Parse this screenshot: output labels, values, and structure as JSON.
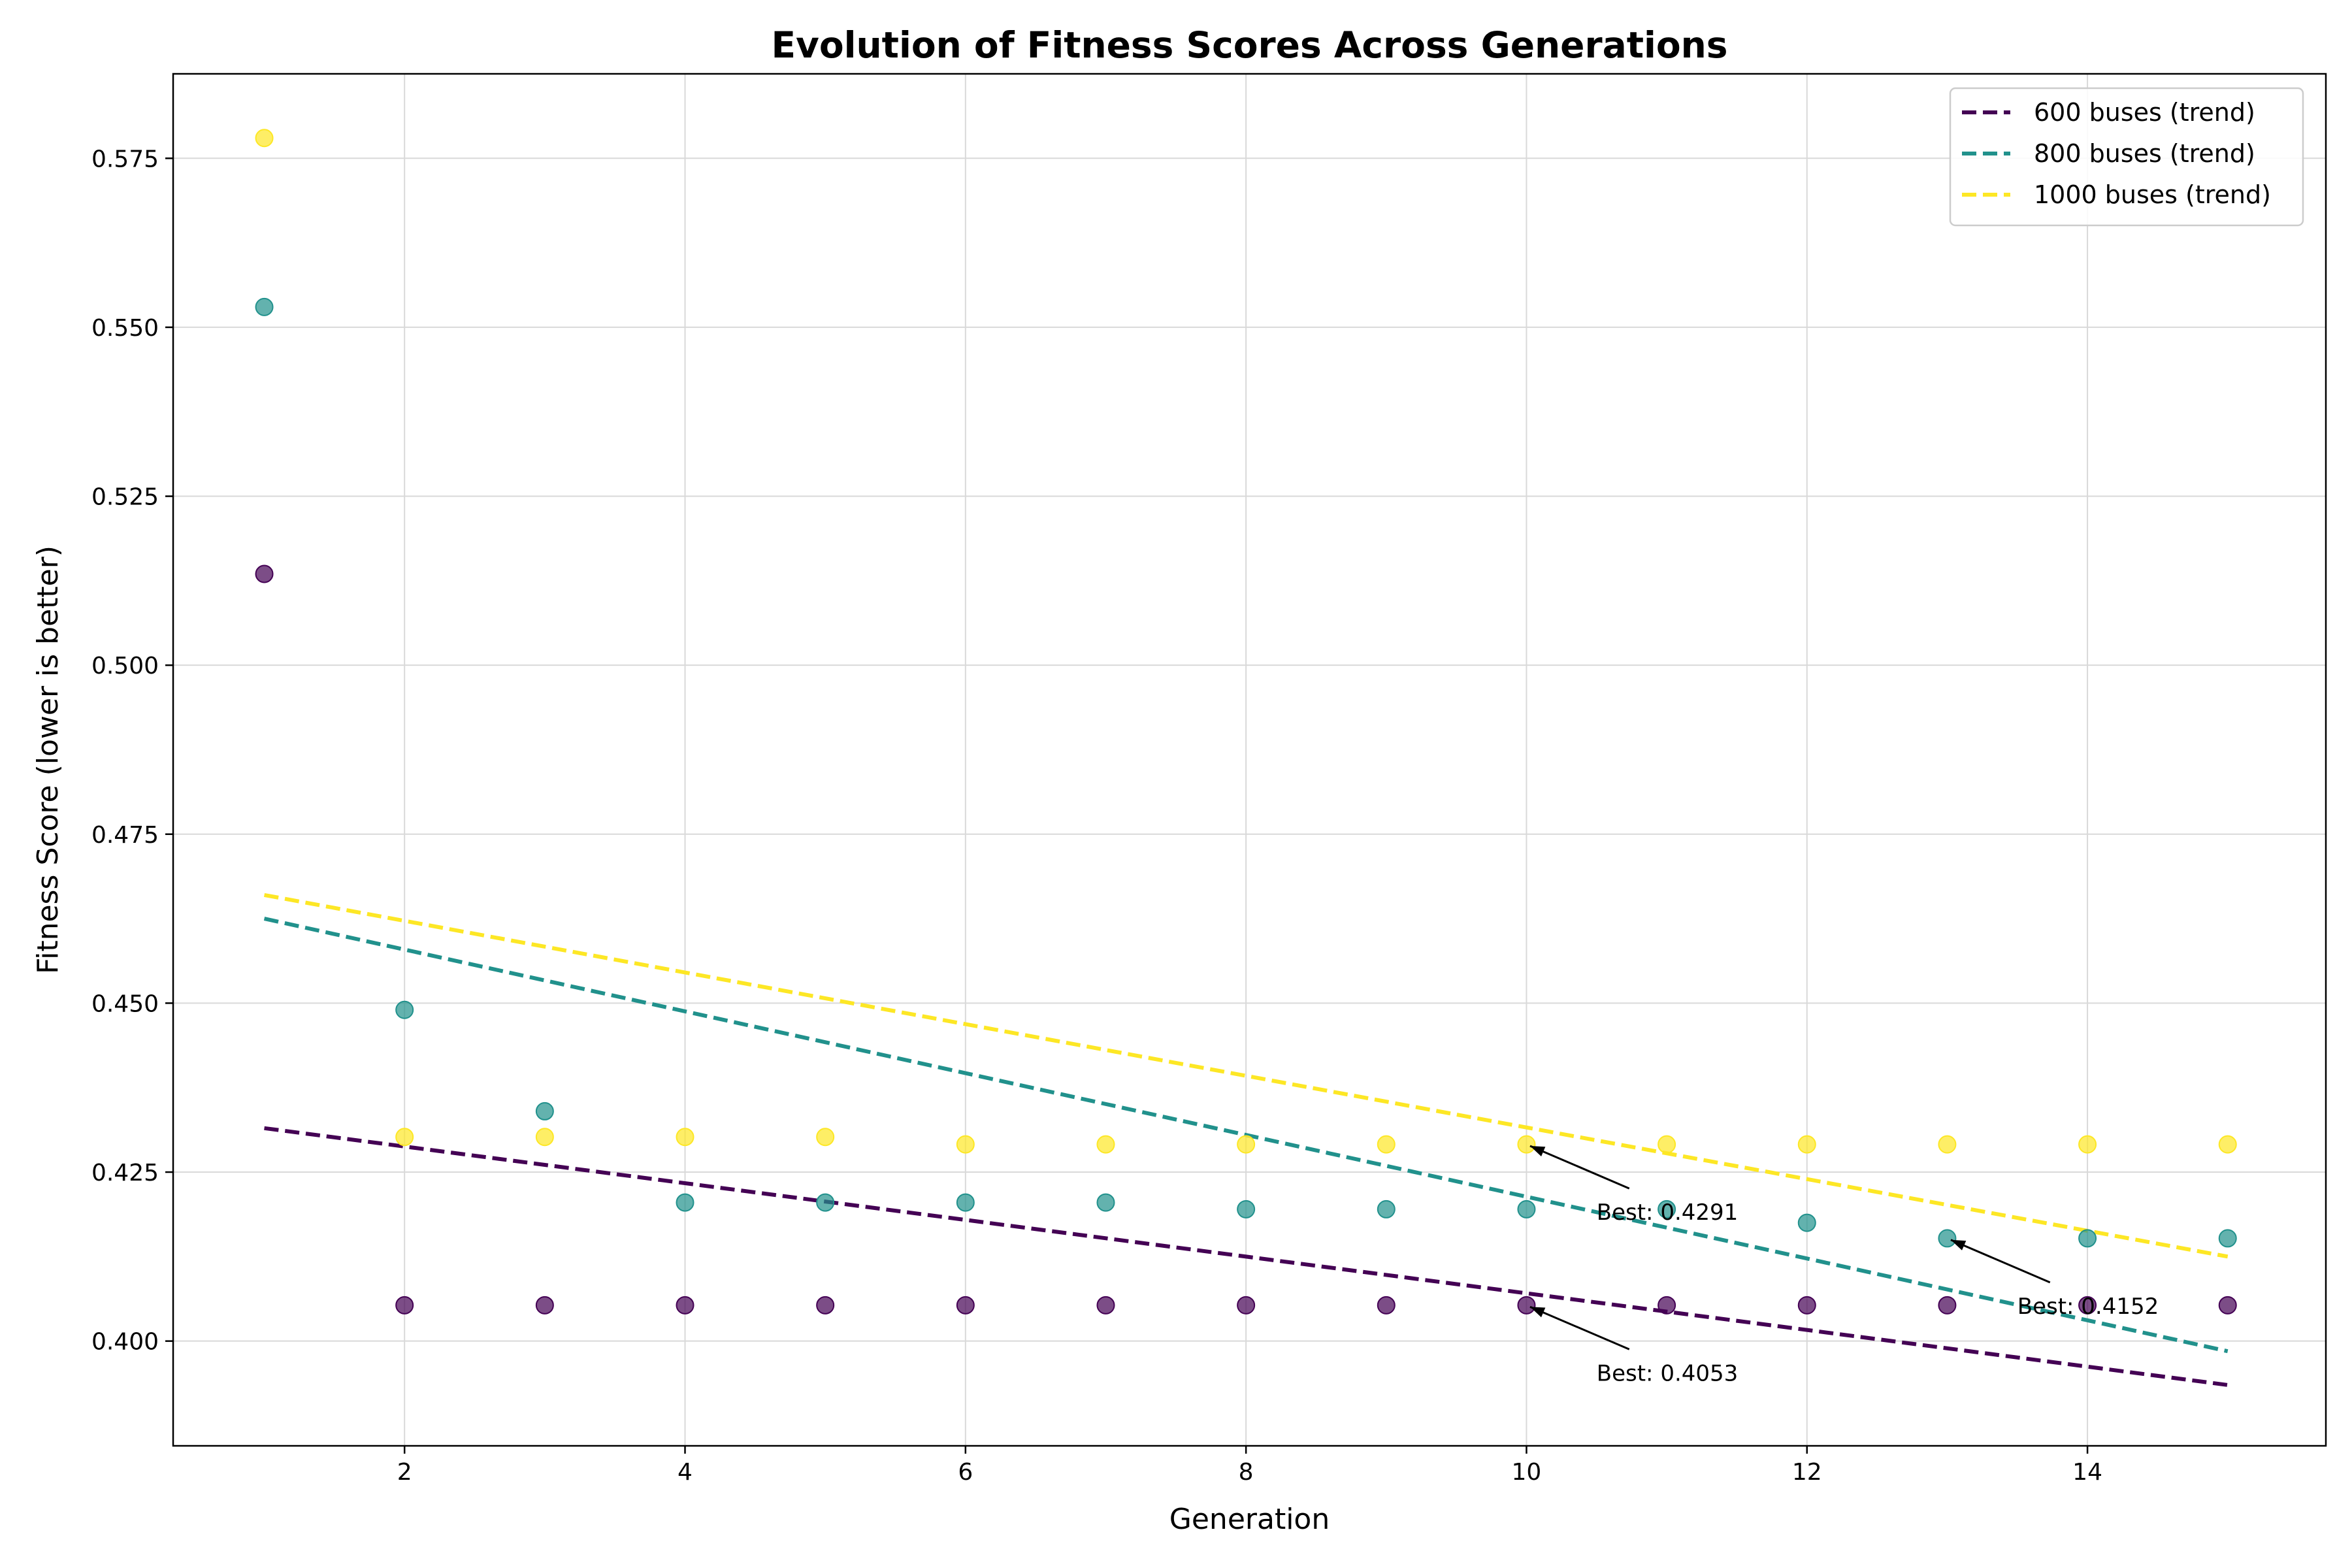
{
  "chart_data": {
    "type": "scatter",
    "title": "Evolution of Fitness Scores Across Generations",
    "xlabel": "Generation",
    "ylabel": "Fitness Score (lower is better)",
    "xlim": [
      0.35,
      15.7
    ],
    "ylim": [
      0.3845,
      0.5875
    ],
    "xticks": [
      2,
      4,
      6,
      8,
      10,
      12,
      14
    ],
    "yticks": [
      0.4,
      0.425,
      0.45,
      0.475,
      0.5,
      0.525,
      0.55,
      0.575
    ],
    "ytick_labels": [
      "0.400",
      "0.425",
      "0.450",
      "0.475",
      "0.500",
      "0.525",
      "0.550",
      "0.575"
    ],
    "grid": true,
    "legend_position": "top-right",
    "x": [
      1,
      2,
      3,
      4,
      5,
      6,
      7,
      8,
      9,
      10,
      11,
      12,
      13,
      14,
      15
    ],
    "series": [
      {
        "name": "600 buses (trend)",
        "color": "#440154",
        "values": [
          0.5135,
          0.4053,
          0.4053,
          0.4053,
          0.4053,
          0.4053,
          0.4053,
          0.4053,
          0.4053,
          0.4053,
          0.4053,
          0.4053,
          0.4053,
          0.4053,
          0.4053
        ],
        "trend": [
          0.4315,
          0.3935
        ]
      },
      {
        "name": "800 buses (trend)",
        "color": "#21918c",
        "values": [
          0.553,
          0.449,
          0.434,
          0.4205,
          0.4205,
          0.4205,
          0.4205,
          0.4195,
          0.4195,
          0.4195,
          0.4195,
          0.4175,
          0.4152,
          0.4152,
          0.4152
        ],
        "trend": [
          0.4625,
          0.3985
        ]
      },
      {
        "name": "1000 buses (trend)",
        "color": "#fde725",
        "values": [
          0.578,
          0.4302,
          0.4302,
          0.4302,
          0.4302,
          0.4291,
          0.4291,
          0.4291,
          0.4291,
          0.4291,
          0.4291,
          0.4291,
          0.4291,
          0.4291,
          0.4291
        ],
        "trend": [
          0.466,
          0.4125
        ]
      }
    ],
    "annotations": [
      {
        "text": "Best: 0.4291",
        "x": 10,
        "y": 0.4291,
        "text_x": 10.5,
        "text_y": 0.4191
      },
      {
        "text": "Best: 0.4053",
        "x": 10,
        "y": 0.4053,
        "text_x": 10.5,
        "text_y": 0.3953
      },
      {
        "text": "Best: 0.4152",
        "x": 13,
        "y": 0.4152,
        "text_x": 13.5,
        "text_y": 0.4052
      }
    ]
  }
}
